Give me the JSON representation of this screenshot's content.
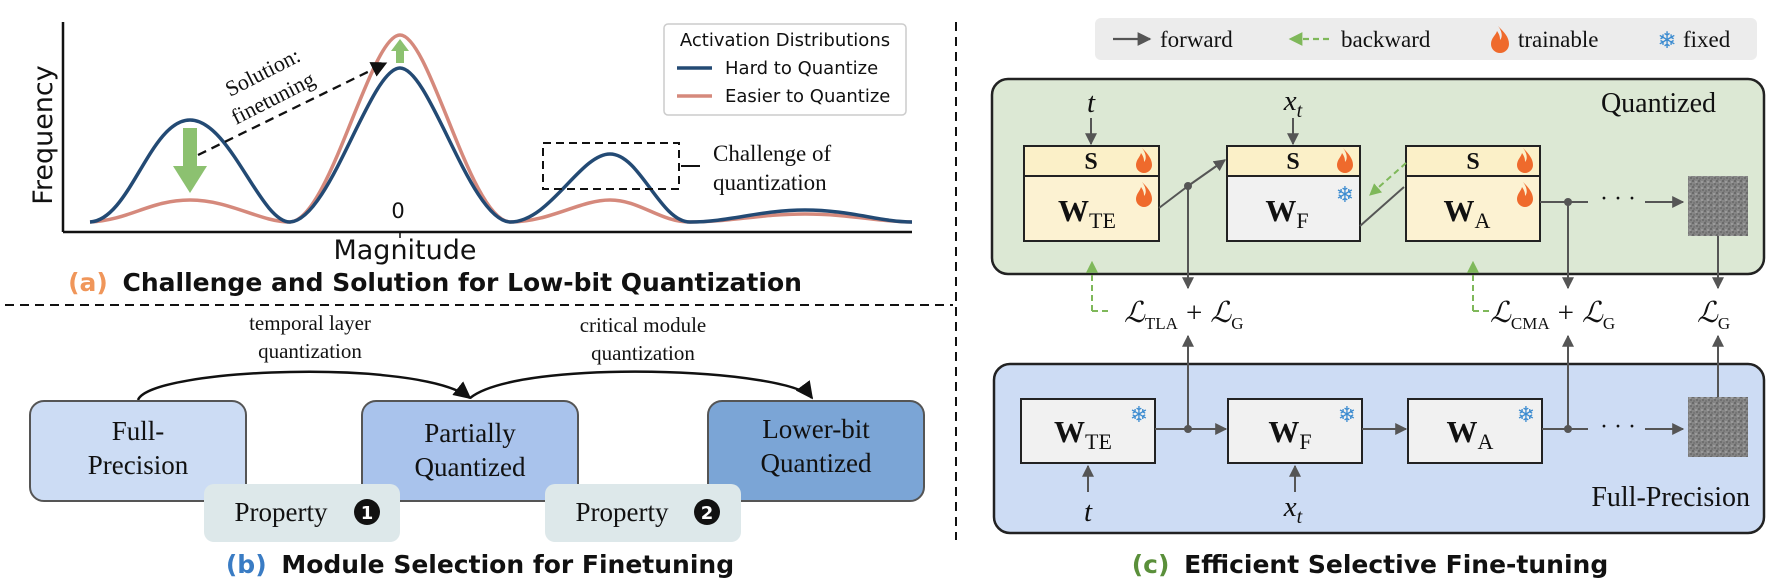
{
  "panel_a": {
    "caption_letter": "(a)",
    "caption_text": "Challenge and Solution for Low-bit Quantization",
    "ylabel": "Frequency",
    "xlabel": "Magnitude",
    "zero_tick": "0",
    "legend": {
      "title": "Activation Distributions",
      "items": [
        {
          "label": "Hard to Quantize",
          "color": "#234a74"
        },
        {
          "label": "Easier to Quantize",
          "color": "#d5897c"
        }
      ]
    },
    "solution_label_line1": "Solution:",
    "solution_label_line2": "finetuning",
    "challenge_line1": "Challenge of",
    "challenge_line2": "quantization",
    "arrow_color": "#8cc170"
  },
  "panel_b": {
    "caption_letter": "(b)",
    "caption_text": "Module Selection for Finetuning",
    "arc1_line1": "temporal layer",
    "arc1_line2": "quantization",
    "arc2_line1": "critical module",
    "arc2_line2": "quantization",
    "box_full_line1": "Full-",
    "box_full_line2": "Precision",
    "box_partial_line1": "Partially",
    "box_partial_line2": "Quantized",
    "box_lower_line1": "Lower-bit",
    "box_lower_line2": "Quantized",
    "property1": "Property",
    "property2": "Property",
    "badge1": "1",
    "badge2": "2",
    "colors": {
      "full": "#ccdcf4",
      "partial": "#a9c3ec",
      "lower": "#7ba5d6",
      "property": "#dde8ea"
    }
  },
  "panel_c": {
    "caption_letter": "(c)",
    "caption_text": "Efficient Selective Fine-tuning",
    "legend": {
      "forward": "forward",
      "backward": "backward",
      "trainable": "trainable",
      "fixed": "fixed"
    },
    "quantized_label": "Quantized",
    "fullprecision_label": "Full-Precision",
    "s_label": "S",
    "w_letter": "W",
    "sub_te": "TE",
    "sub_f": "F",
    "sub_a": "A",
    "input_t": "t",
    "input_x": "x",
    "input_x_sub": "t",
    "dots": "· · ·",
    "loss_letter": "ℒ",
    "loss_tla_sub": "TLA",
    "loss_cma_sub": "CMA",
    "loss_g_sub": "G",
    "plus": "+",
    "colors": {
      "quantized_bg": "#dce8d4",
      "full_bg": "#cddcf4",
      "s_box": "#fbf0c8",
      "w_quant": "#fcf2d2",
      "w_full": "#f1f1f1",
      "backward": "#7fb85a",
      "flame": "#ef6a2c",
      "snow": "#3b8bd0"
    }
  }
}
